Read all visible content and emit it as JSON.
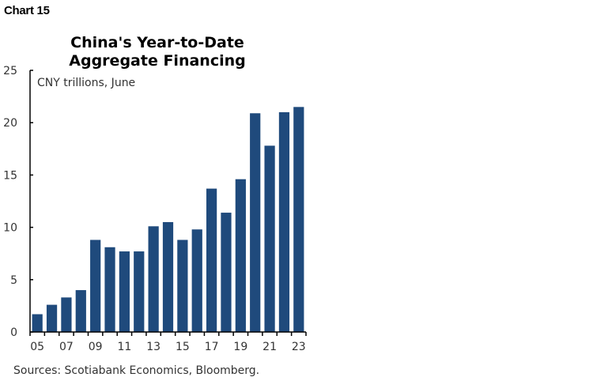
{
  "header": {
    "chart_label": "Chart 15"
  },
  "chart_data": {
    "type": "bar",
    "title": "China's Year-to-Date Aggregate Financing",
    "title_lines": [
      "China's Year-to-Date",
      "Aggregate Financing"
    ],
    "subtitle": "CNY trillions, June",
    "xlabel": "",
    "ylabel": "CNY trillions",
    "categories": [
      "05",
      "06",
      "07",
      "08",
      "09",
      "10",
      "11",
      "12",
      "13",
      "14",
      "15",
      "16",
      "17",
      "18",
      "19",
      "20",
      "21",
      "22",
      "23"
    ],
    "x_tick_labels": [
      "05",
      "07",
      "09",
      "11",
      "13",
      "15",
      "17",
      "19",
      "21",
      "23"
    ],
    "values": [
      1.7,
      2.6,
      3.3,
      4.0,
      8.8,
      8.1,
      7.7,
      7.7,
      10.1,
      10.5,
      8.8,
      9.8,
      13.7,
      11.4,
      14.6,
      20.9,
      17.8,
      21.0,
      21.5
    ],
    "ylim": [
      0,
      25
    ],
    "y_ticks": [
      0,
      5,
      10,
      15,
      20,
      25
    ],
    "grid": false,
    "legend": null,
    "bar_color": "#1f4a7c",
    "source": "Sources: Scotiabank Economics, Bloomberg."
  }
}
